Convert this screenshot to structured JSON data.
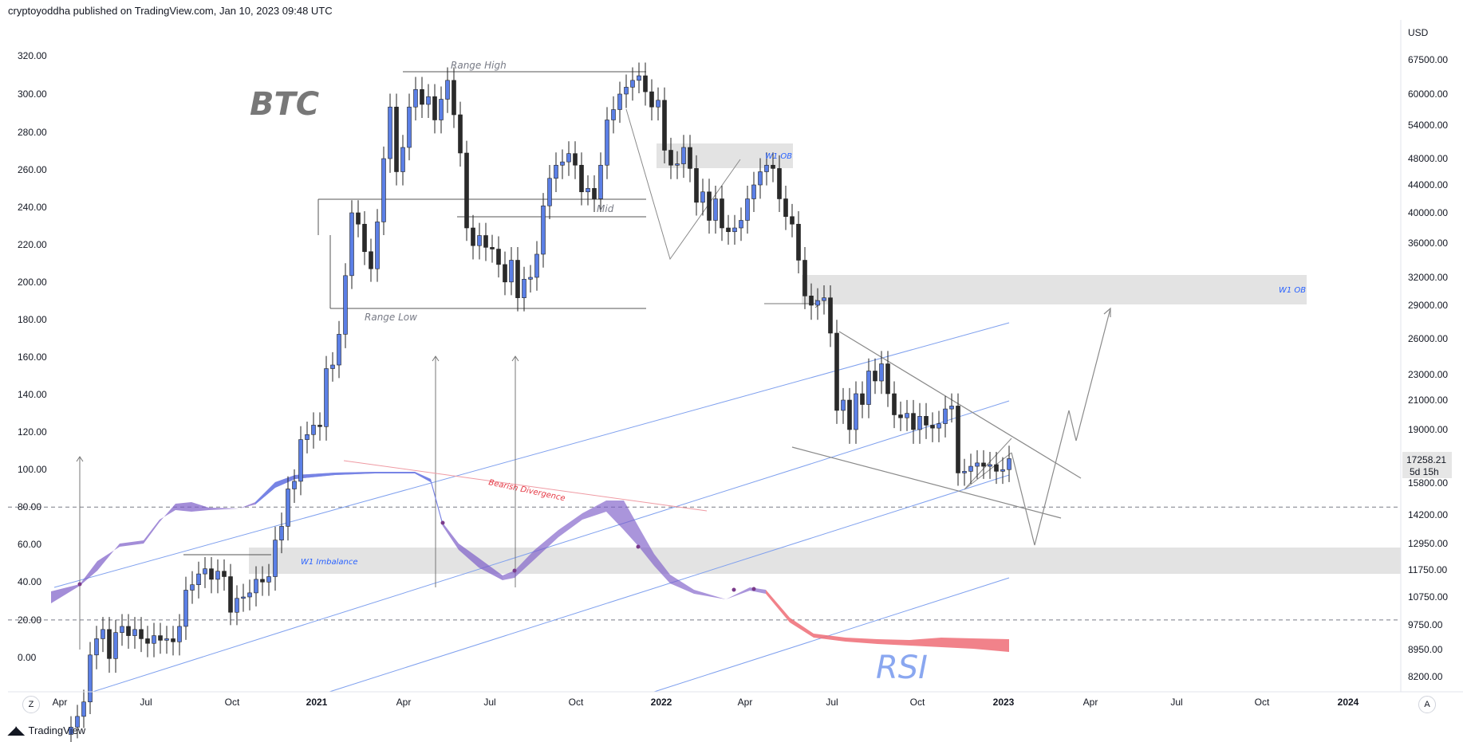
{
  "header": {
    "publisher_line": "cryptoyoddha published on TradingView.com, Jan 10, 2023 09:48 UTC"
  },
  "footer": {
    "logo_text": "TradingView"
  },
  "buttons": {
    "zoom_label": "Z",
    "auto_label": "A"
  },
  "chart_data": {
    "type": "candlestick",
    "title": "BTC",
    "indicator_label": "RSI",
    "currency_label": "USD",
    "last_price": "17258.21",
    "countdown": "5d 15h",
    "x_ticks": [
      {
        "label": "Apr",
        "bold": false
      },
      {
        "label": "Jul",
        "bold": false
      },
      {
        "label": "Oct",
        "bold": false
      },
      {
        "label": "2021",
        "bold": true
      },
      {
        "label": "Apr",
        "bold": false
      },
      {
        "label": "Jul",
        "bold": false
      },
      {
        "label": "Oct",
        "bold": false
      },
      {
        "label": "2022",
        "bold": true
      },
      {
        "label": "Apr",
        "bold": false
      },
      {
        "label": "Jul",
        "bold": false
      },
      {
        "label": "Oct",
        "bold": false
      },
      {
        "label": "2023",
        "bold": true
      },
      {
        "label": "Apr",
        "bold": false
      },
      {
        "label": "Jul",
        "bold": false
      },
      {
        "label": "Oct",
        "bold": false
      },
      {
        "label": "2024",
        "bold": true
      }
    ],
    "left_axis_labels": [
      "320.00",
      "300.00",
      "280.00",
      "260.00",
      "240.00",
      "220.00",
      "200.00",
      "180.00",
      "160.00",
      "140.00",
      "120.00",
      "100.00",
      "80.00",
      "60.00",
      "40.00",
      "20.00",
      "0.00"
    ],
    "left_axis_values": [
      320,
      300,
      280,
      260,
      240,
      220,
      200,
      180,
      160,
      140,
      120,
      100,
      80,
      60,
      40,
      20,
      0
    ],
    "right_axis_labels": [
      "67500.00",
      "60000.00",
      "54000.00",
      "48000.00",
      "44000.00",
      "40000.00",
      "36000.00",
      "32000.00",
      "29000.00",
      "26000.00",
      "23000.00",
      "21000.00",
      "19000.00",
      "15800.00",
      "14200.00",
      "12950.00",
      "11750.00",
      "10750.00",
      "9750.00",
      "8950.00",
      "8200.00"
    ],
    "right_axis_values": [
      67500,
      60000,
      54000,
      48000,
      44000,
      40000,
      36000,
      32000,
      29000,
      26000,
      23000,
      21000,
      19000,
      15800,
      14200,
      12950,
      11750,
      10750,
      9750,
      8950,
      8200
    ],
    "annotations": {
      "range_high": "Range High",
      "range_low": "Range Low",
      "mid": "Mid",
      "w1_ob_upper": "W1 OB",
      "w1_ob_lower": "W1 OB",
      "w1_imbalance": "W1 Imbalance",
      "bearish_divergence": "Bearish Divergence"
    },
    "rsi_levels": [
      80,
      20
    ],
    "colors": {
      "bull_candle": "#5b7fe6",
      "bear_candle": "#2a2a2a",
      "zone_fill": "#e3e3e3",
      "channel_line": "#7fa0ee",
      "rsi_purple": "#7c5cc7",
      "rsi_blue": "#6b82e8",
      "rsi_red": "#ee6c76",
      "divergence_line": "#ef9aa3",
      "annotation_blue": "#2962ff",
      "annotation_red": "#e53945"
    }
  }
}
